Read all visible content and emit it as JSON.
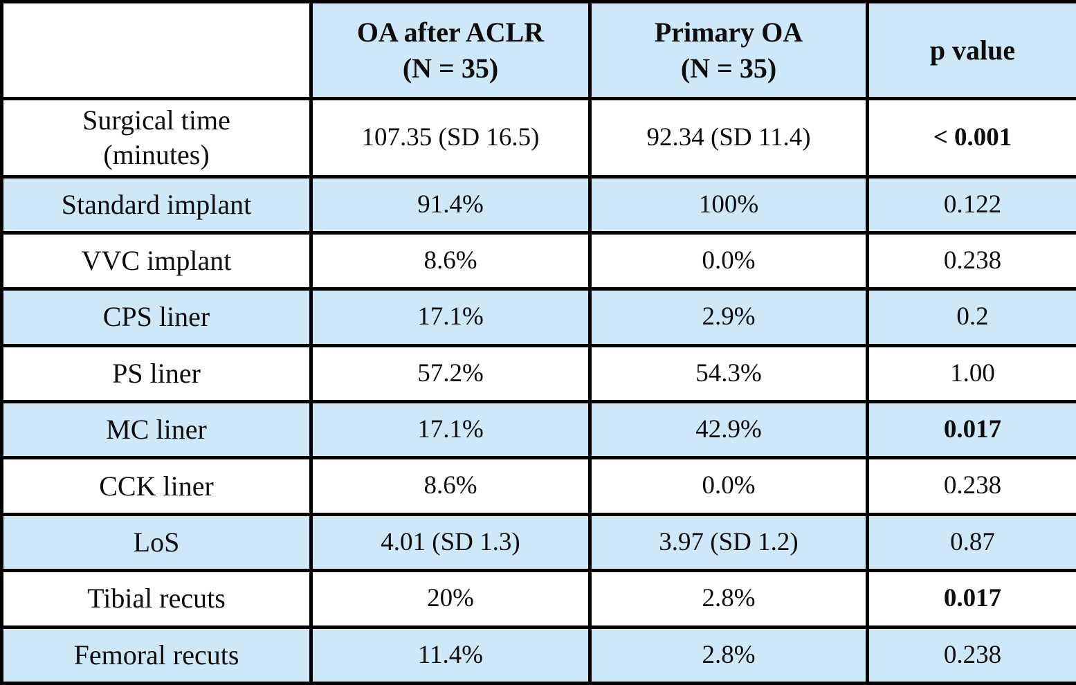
{
  "table": {
    "header": {
      "corner": "",
      "col_oa_aclr": "OA after ACLR\n(N = 35)",
      "col_primary_oa": "Primary OA\n(N = 35)",
      "col_p_value": "p value"
    },
    "rows": [
      {
        "label": "Surgical time\n(minutes)",
        "oa_aclr": "107.35 (SD 16.5)",
        "primary_oa": "92.34 (SD 11.4)",
        "p_value": "< 0.001",
        "p_bold": true
      },
      {
        "label": "Standard implant",
        "oa_aclr": "91.4%",
        "primary_oa": "100%",
        "p_value": "0.122",
        "p_bold": false
      },
      {
        "label": "VVC implant",
        "oa_aclr": "8.6%",
        "primary_oa": "0.0%",
        "p_value": "0.238",
        "p_bold": false
      },
      {
        "label": "CPS liner",
        "oa_aclr": "17.1%",
        "primary_oa": "2.9%",
        "p_value": "0.2",
        "p_bold": false
      },
      {
        "label": "PS liner",
        "oa_aclr": "57.2%",
        "primary_oa": "54.3%",
        "p_value": "1.00",
        "p_bold": false
      },
      {
        "label": "MC liner",
        "oa_aclr": "17.1%",
        "primary_oa": "42.9%",
        "p_value": "0.017",
        "p_bold": true
      },
      {
        "label": "CCK liner",
        "oa_aclr": "8.6%",
        "primary_oa": "0.0%",
        "p_value": "0.238",
        "p_bold": false
      },
      {
        "label": "LoS",
        "oa_aclr": "4.01 (SD 1.3)",
        "primary_oa": "3.97 (SD 1.2)",
        "p_value": "0.87",
        "p_bold": false
      },
      {
        "label": "Tibial recuts",
        "oa_aclr": "20%",
        "primary_oa": "2.8%",
        "p_value": "0.017",
        "p_bold": true
      },
      {
        "label": "Femoral recuts",
        "oa_aclr": "11.4%",
        "primary_oa": "2.8%",
        "p_value": "0.238",
        "p_bold": false
      }
    ]
  },
  "colors": {
    "row_blue": "#cfe8f8",
    "row_white": "#ffffff",
    "border": "#000000",
    "text": "#0d0d0d"
  },
  "chart_data": {
    "type": "table",
    "title": "",
    "columns": [
      "",
      "OA after ACLR (N = 35)",
      "Primary OA (N = 35)",
      "p value"
    ],
    "rows": [
      [
        "Surgical time (minutes)",
        "107.35 (SD 16.5)",
        "92.34 (SD 11.4)",
        "< 0.001"
      ],
      [
        "Standard implant",
        "91.4%",
        "100%",
        "0.122"
      ],
      [
        "VVC implant",
        "8.6%",
        "0.0%",
        "0.238"
      ],
      [
        "CPS liner",
        "17.1%",
        "2.9%",
        "0.2"
      ],
      [
        "PS liner",
        "57.2%",
        "54.3%",
        "1.00"
      ],
      [
        "MC liner",
        "17.1%",
        "42.9%",
        "0.017"
      ],
      [
        "CCK liner",
        "8.6%",
        "0.0%",
        "0.238"
      ],
      [
        "LoS",
        "4.01 (SD 1.3)",
        "3.97 (SD 1.2)",
        "0.87"
      ],
      [
        "Tibial recuts",
        "20%",
        "2.8%",
        "0.017"
      ],
      [
        "Femoral recuts",
        "11.4%",
        "2.8%",
        "0.238"
      ]
    ],
    "bold_p_values_rows": [
      "Surgical time (minutes)",
      "MC liner",
      "Tibial recuts"
    ],
    "layout": {
      "striped": "alternating white / light blue rows, header row light blue",
      "grid": "on",
      "numeric_figure_style": "oldstyle serif"
    }
  }
}
